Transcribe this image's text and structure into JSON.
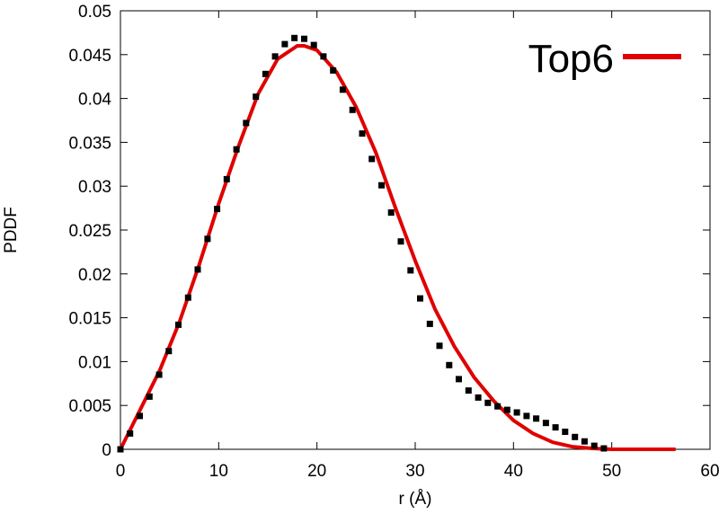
{
  "chart_data": {
    "type": "line",
    "xlabel": "r (Å)",
    "ylabel": "PDDF",
    "xlim": [
      0,
      60
    ],
    "ylim": [
      0,
      0.05
    ],
    "x_ticks": [
      0,
      10,
      20,
      30,
      40,
      50,
      60
    ],
    "y_ticks": [
      0,
      0.005,
      0.01,
      0.015,
      0.02,
      0.025,
      0.03,
      0.035,
      0.04,
      0.045,
      0.05
    ],
    "x_tick_labels": [
      "0",
      "10",
      "20",
      "30",
      "40",
      "50",
      "60"
    ],
    "y_tick_labels": [
      "0",
      "0.005",
      "0.01",
      "0.015",
      "0.02",
      "0.025",
      "0.03",
      "0.035",
      "0.04",
      "0.045",
      "0.05"
    ],
    "grid": false,
    "legend_position": "top-right",
    "series": [
      {
        "kind": "points",
        "color": "#000000",
        "x": [
          0,
          0.98,
          1.97,
          2.95,
          3.94,
          4.92,
          5.9,
          6.89,
          7.87,
          8.86,
          9.84,
          10.82,
          11.81,
          12.79,
          13.78,
          14.76,
          15.74,
          16.73,
          17.71,
          18.7,
          19.68,
          20.66,
          21.65,
          22.63,
          23.62,
          24.6,
          25.58,
          26.57,
          27.55,
          28.54,
          29.52,
          30.5,
          31.49,
          32.47,
          33.46,
          34.44,
          35.42,
          36.41,
          37.39,
          38.38,
          39.36,
          40.34,
          41.33,
          42.31,
          43.3,
          44.28,
          45.26,
          46.25,
          47.23,
          48.22,
          49.2
        ],
        "y": [
          0,
          0.0018,
          0.0038,
          0.006,
          0.0085,
          0.0112,
          0.0142,
          0.0173,
          0.0205,
          0.024,
          0.0274,
          0.0308,
          0.0342,
          0.0372,
          0.0402,
          0.0428,
          0.0448,
          0.0462,
          0.0469,
          0.0468,
          0.0461,
          0.0448,
          0.0432,
          0.041,
          0.0387,
          0.036,
          0.0331,
          0.0301,
          0.027,
          0.0237,
          0.0204,
          0.0172,
          0.0143,
          0.0118,
          0.0096,
          0.008,
          0.0067,
          0.0059,
          0.0053,
          0.0049,
          0.0045,
          0.0042,
          0.0038,
          0.0035,
          0.003,
          0.0025,
          0.002,
          0.0014,
          0.0009,
          0.0004,
          0.0001
        ]
      },
      {
        "kind": "line",
        "name": "Top6",
        "color": "#e00000",
        "x": [
          0,
          2,
          4,
          6,
          8,
          10,
          12,
          14,
          16,
          18,
          18.7,
          20,
          22,
          24,
          26,
          28,
          30,
          32,
          34,
          36,
          38,
          40,
          42,
          44,
          46,
          48,
          50,
          52,
          54,
          56.5
        ],
        "y": [
          0,
          0.0045,
          0.009,
          0.0145,
          0.021,
          0.028,
          0.0345,
          0.0405,
          0.0445,
          0.046,
          0.046,
          0.0455,
          0.043,
          0.039,
          0.0338,
          0.0275,
          0.0215,
          0.016,
          0.0117,
          0.0082,
          0.0055,
          0.0033,
          0.0018,
          0.0008,
          0.0003,
          0.0001,
          0,
          0,
          0,
          0
        ]
      }
    ]
  }
}
